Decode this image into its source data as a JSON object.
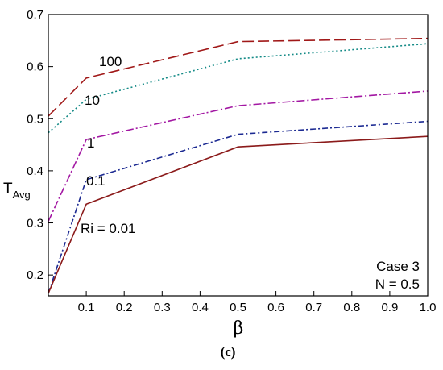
{
  "chart_data": {
    "type": "line",
    "xlabel": "β",
    "ylabel_main": "T",
    "ylabel_sub": "Avg",
    "xlim": [
      0.0,
      1.0
    ],
    "ylim": [
      0.16,
      0.7
    ],
    "xticks": [
      0.1,
      0.2,
      0.3,
      0.4,
      0.5,
      0.6,
      0.7,
      0.8,
      0.9,
      1.0
    ],
    "xtick_labels": [
      "0.1",
      "0.2",
      "0.3",
      "0.4",
      "0.5",
      "0.6",
      "0.7",
      "0.8",
      "0.9",
      "1.0"
    ],
    "yticks": [
      0.2,
      0.3,
      0.4,
      0.5,
      0.6,
      0.7
    ],
    "ytick_labels": [
      "0.2",
      "0.3",
      "0.4",
      "0.5",
      "0.6",
      "0.7"
    ],
    "grid": false,
    "series": [
      {
        "name": "100",
        "color": "#a01818",
        "dash": "14,5",
        "x": [
          0.0,
          0.1,
          0.5,
          1.0
        ],
        "y": [
          0.505,
          0.578,
          0.648,
          0.654
        ]
      },
      {
        "name": "10",
        "color": "#138a86",
        "dash": "2,3",
        "x": [
          0.0,
          0.1,
          0.5,
          1.0
        ],
        "y": [
          0.473,
          0.537,
          0.615,
          0.644
        ]
      },
      {
        "name": "1",
        "color": "#a318a3",
        "dash": "10,3,2,3",
        "x": [
          0.0,
          0.1,
          0.5,
          1.0
        ],
        "y": [
          0.303,
          0.46,
          0.525,
          0.553
        ]
      },
      {
        "name": "0.1",
        "color": "#1c2a92",
        "dash": "7,3,2,3",
        "x": [
          0.0,
          0.1,
          0.5,
          1.0
        ],
        "y": [
          0.165,
          0.383,
          0.47,
          0.495
        ]
      },
      {
        "name": "Ri = 0.01",
        "color": "#8b1a1a",
        "dash": "",
        "x": [
          0.0,
          0.1,
          0.5,
          1.0
        ],
        "y": [
          0.165,
          0.336,
          0.446,
          0.466
        ]
      }
    ],
    "annotations": {
      "case": "Case 3",
      "n_value": "N = 0.5"
    },
    "caption": "(c)"
  }
}
